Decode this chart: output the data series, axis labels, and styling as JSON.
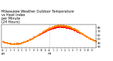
{
  "title": "Milwaukee Weather Outdoor Temperature\nvs Heat Index\nper Minute\n(24 Hours)",
  "title_fontsize": 3.5,
  "title_color": "#000000",
  "bg_color": "#ffffff",
  "plot_bg_color": "#ffffff",
  "line1_color": "#ff0000",
  "line2_color": "#ff8800",
  "vline_color": "#888888",
  "vline_style": ":",
  "ylim": [
    28,
    88
  ],
  "ytick_fontsize": 2.8,
  "xtick_fontsize": 2.2,
  "vline_x": 720,
  "yticks": [
    30,
    40,
    50,
    60,
    70,
    80
  ],
  "xtick_positions": [
    0,
    60,
    120,
    180,
    240,
    300,
    360,
    420,
    480,
    540,
    600,
    660,
    720,
    780,
    840,
    900,
    960,
    1020,
    1080,
    1140,
    1200,
    1260,
    1320,
    1380
  ],
  "xtick_labels": [
    "12\n AM",
    "1",
    "2",
    "3",
    "4",
    "5",
    "6",
    "7",
    "8",
    "9",
    "10",
    "11",
    "12\n PM",
    "1",
    "2",
    "3",
    "4",
    "5",
    "6",
    "7",
    "8",
    "9",
    "10",
    "11"
  ]
}
